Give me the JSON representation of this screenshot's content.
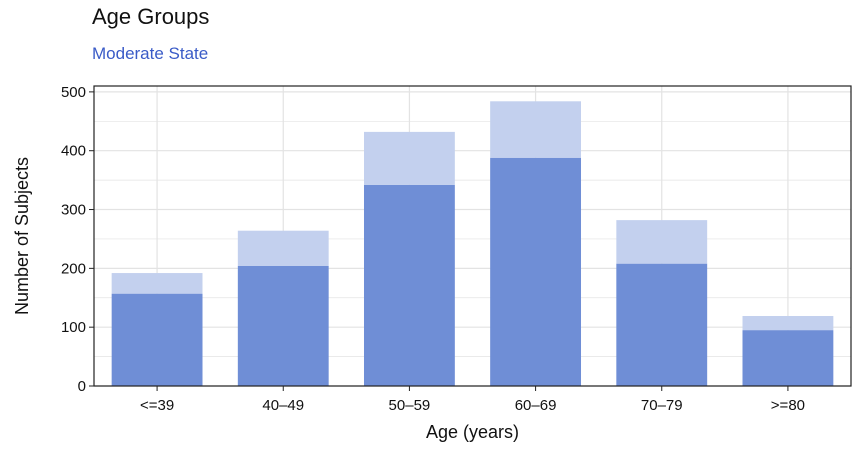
{
  "chart_data": {
    "type": "bar",
    "stacked": true,
    "title": "Age Groups",
    "subtitle": "Moderate State",
    "xlabel": "Age (years)",
    "ylabel": "Number of Subjects",
    "categories": [
      "<=39",
      "40–49",
      "50–59",
      "60–69",
      "70–79",
      ">=80"
    ],
    "series": [
      {
        "values": [
          157,
          204,
          342,
          388,
          208,
          95
        ]
      },
      {
        "values": [
          35,
          60,
          90,
          96,
          74,
          24
        ]
      }
    ],
    "totals": [
      192,
      264,
      432,
      484,
      282,
      119
    ],
    "ylim": [
      0,
      510
    ],
    "yticks": [
      0,
      100,
      200,
      300,
      400,
      500
    ],
    "grid": true,
    "legend": "none"
  },
  "colors": {
    "series_dark": "#6f8ed6",
    "series_light": "#c3d0ee",
    "subtitle": "#3a5bc7",
    "grid": "#e3e3e3"
  }
}
